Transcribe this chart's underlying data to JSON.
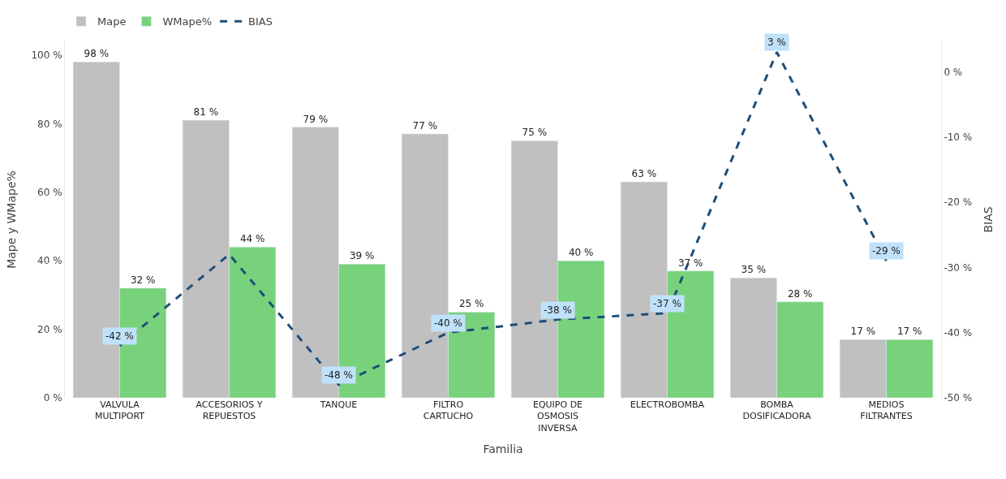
{
  "chart_data": {
    "type": "bar",
    "xlabel": "Familia",
    "ylabel": "Mape y WMape%",
    "y2label": "BIAS",
    "categories": [
      "VALVULA MULTIPORT",
      "ACCESORIOS Y REPUESTOS",
      "TANQUE",
      "FILTRO CARTUCHO",
      "EQUIPO DE OSMOSIS INVERSA",
      "ELECTROBOMBA",
      "BOMBA DOSIFICADORA",
      "MEDIOS FILTRANTES"
    ],
    "series": [
      {
        "name": "Mape",
        "color": "#c0c0c0",
        "values": [
          98,
          81,
          79,
          77,
          75,
          63,
          35,
          17
        ],
        "value_labels": [
          "98 %",
          "81 %",
          "79 %",
          "77 %",
          "75 %",
          "63 %",
          "35 %",
          "17 %"
        ]
      },
      {
        "name": "WMape%",
        "color": "#78d27b",
        "values": [
          32,
          44,
          39,
          25,
          40,
          37,
          28,
          17
        ],
        "value_labels": [
          "32 %",
          "44 %",
          "39 %",
          "25 %",
          "40 %",
          "37 %",
          "28 %",
          "17 %"
        ]
      },
      {
        "name": "BIAS",
        "type": "line",
        "axis": "y2",
        "color": "#1f4e79",
        "line_style": "dashed",
        "marker": "none",
        "values": [
          -42,
          -28,
          -48,
          -40,
          -38,
          -37,
          3,
          -29
        ],
        "value_labels": [
          "-42 %",
          null,
          "-48 %",
          "-40 %",
          "-38 %",
          "-37 %",
          "3 %",
          "-29 %"
        ]
      }
    ],
    "ylim": [
      0,
      104
    ],
    "yticks": [
      {
        "value": 0,
        "label": "0 %"
      },
      {
        "value": 20,
        "label": "20 %"
      },
      {
        "value": 40,
        "label": "40 %"
      },
      {
        "value": 60,
        "label": "60 %"
      },
      {
        "value": 80,
        "label": "80 %"
      },
      {
        "value": 100,
        "label": "100 %"
      }
    ],
    "y2lim": [
      -50,
      4.65
    ],
    "y2ticks": [
      {
        "value": -50,
        "label": "-50 %"
      },
      {
        "value": -40,
        "label": "-40 %"
      },
      {
        "value": -30,
        "label": "-30 %"
      },
      {
        "value": -20,
        "label": "-20 %"
      },
      {
        "value": -10,
        "label": "-10 %"
      },
      {
        "value": 0,
        "label": "0 %"
      }
    ],
    "legend": "top left"
  }
}
